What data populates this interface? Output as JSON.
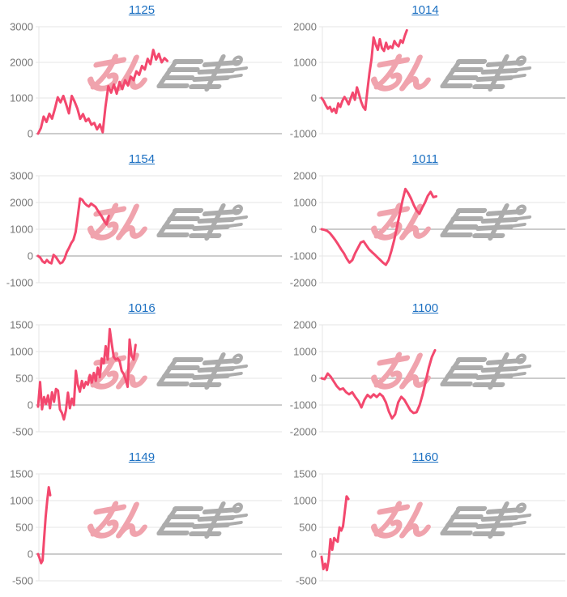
{
  "style": {
    "background": "#ffffff",
    "line_color": "#f3486e",
    "title_color": "#1c70c2",
    "grid_color": "#e6e6e6",
    "zero_line_color": "#999999",
    "tick_label_color": "#777777",
    "watermark_pink": "#f0a3ad",
    "watermark_gray": "#acacac"
  },
  "watermark": {
    "text": "みんレポ"
  },
  "chart_data": [
    {
      "type": "line",
      "title": "1125",
      "ymin": 0,
      "ymax": 3000,
      "ystep": 1000,
      "yticks": [
        3000,
        2000,
        1000,
        0
      ],
      "grid": true,
      "legend": "none",
      "end_fraction": 0.53,
      "values": [
        0,
        160,
        480,
        330,
        560,
        420,
        700,
        1020,
        880,
        1060,
        820,
        570,
        1060,
        900,
        700,
        415,
        550,
        350,
        420,
        250,
        300,
        120,
        260,
        40,
        750,
        1330,
        1150,
        1380,
        1120,
        1450,
        1250,
        1500,
        1350,
        1600,
        1500,
        1750,
        1650,
        1900,
        1800,
        2100,
        1950,
        2350,
        2080,
        2240,
        2000,
        2120,
        2040
      ]
    },
    {
      "type": "line",
      "title": "1014",
      "ymin": -1000,
      "ymax": 2000,
      "ystep": 1000,
      "yticks": [
        2000,
        1000,
        0,
        -1000
      ],
      "grid": true,
      "legend": "none",
      "end_fraction": 0.35,
      "values": [
        0,
        -80,
        -200,
        -300,
        -250,
        -380,
        -300,
        -420,
        -150,
        -250,
        -80,
        30,
        -60,
        -180,
        0,
        150,
        -50,
        300,
        100,
        -100,
        -250,
        -330,
        200,
        700,
        1100,
        1700,
        1500,
        1350,
        1650,
        1400,
        1320,
        1550,
        1380,
        1450,
        1400,
        1600,
        1500,
        1450,
        1620,
        1550,
        1750,
        1900
      ]
    },
    {
      "type": "line",
      "title": "1154",
      "ymin": -1000,
      "ymax": 3000,
      "ystep": 1000,
      "yticks": [
        3000,
        2000,
        1000,
        0,
        -1000
      ],
      "grid": true,
      "legend": "none",
      "end_fraction": 0.29,
      "values": [
        0,
        -60,
        -200,
        -260,
        -150,
        -240,
        -280,
        40,
        -30,
        -160,
        -280,
        -240,
        -100,
        150,
        300,
        480,
        600,
        900,
        1500,
        2150,
        2100,
        1980,
        1900,
        1850,
        1960,
        1900,
        1840,
        1700,
        1580,
        1450,
        1300,
        1180,
        1500
      ]
    },
    {
      "type": "line",
      "title": "1011",
      "ymin": -2000,
      "ymax": 2000,
      "ystep": 1000,
      "yticks": [
        2000,
        1000,
        0,
        -1000,
        -2000
      ],
      "grid": true,
      "legend": "none",
      "end_fraction": 0.47,
      "values": [
        0,
        -20,
        -60,
        -150,
        -280,
        -420,
        -580,
        -750,
        -900,
        -1100,
        -1250,
        -1150,
        -900,
        -700,
        -500,
        -450,
        -600,
        -750,
        -850,
        -950,
        -1050,
        -1150,
        -1250,
        -1330,
        -1150,
        -800,
        -400,
        100,
        600,
        1100,
        1505,
        1350,
        1150,
        900,
        700,
        580,
        800,
        1000,
        1250,
        1400,
        1200,
        1230
      ]
    },
    {
      "type": "line",
      "title": "1016",
      "ymin": -500,
      "ymax": 1500,
      "ystep": 500,
      "yticks": [
        1500,
        1000,
        500,
        0,
        -500
      ],
      "grid": true,
      "legend": "none",
      "end_fraction": 0.4,
      "values": [
        -30,
        430,
        -80,
        150,
        20,
        180,
        -60,
        240,
        60,
        300,
        270,
        -80,
        -150,
        -270,
        -100,
        230,
        -60,
        120,
        0,
        640,
        380,
        250,
        450,
        320,
        430,
        380,
        560,
        420,
        600,
        450,
        700,
        520,
        870,
        780,
        1100,
        850,
        1420,
        1150,
        900,
        850,
        870,
        820,
        640,
        580,
        480,
        340,
        1225,
        920,
        850,
        1125
      ]
    },
    {
      "type": "line",
      "title": "1100",
      "ymin": -2000,
      "ymax": 2000,
      "ystep": 1000,
      "yticks": [
        2000,
        1000,
        0,
        -1000,
        -2000
      ],
      "grid": true,
      "legend": "none",
      "end_fraction": 0.465,
      "values": [
        0,
        -30,
        180,
        60,
        -120,
        -300,
        -420,
        -380,
        -520,
        -600,
        -520,
        -700,
        -850,
        -1090,
        -800,
        -620,
        -720,
        -600,
        -700,
        -580,
        -680,
        -900,
        -1250,
        -1500,
        -1350,
        -900,
        -690,
        -800,
        -1000,
        -1200,
        -1300,
        -1270,
        -1000,
        -600,
        -100,
        400,
        800,
        1050
      ]
    },
    {
      "type": "line",
      "title": "1149",
      "ymin": -500,
      "ymax": 1500,
      "ystep": 500,
      "yticks": [
        1500,
        1000,
        500,
        0,
        -500
      ],
      "grid": true,
      "legend": "none",
      "end_fraction": 0.05,
      "values": [
        0,
        -80,
        -170,
        -120,
        300,
        700,
        1000,
        1250,
        1100
      ]
    },
    {
      "type": "line",
      "title": "1160",
      "ymin": -500,
      "ymax": 1500,
      "ystep": 500,
      "yticks": [
        1500,
        1000,
        500,
        0,
        -500
      ],
      "grid": true,
      "legend": "none",
      "end_fraction": 0.11,
      "values": [
        -50,
        -280,
        -180,
        -300,
        -100,
        280,
        80,
        300,
        260,
        230,
        500,
        440,
        520,
        800,
        1080,
        1030
      ]
    }
  ]
}
